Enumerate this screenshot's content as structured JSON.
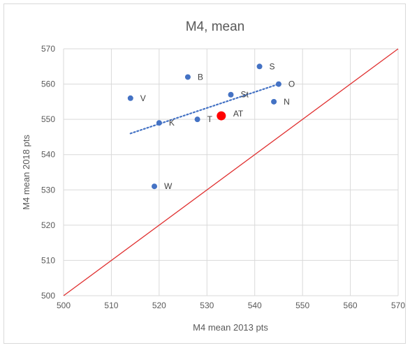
{
  "chart_data": {
    "type": "scatter",
    "title": "M4, mean",
    "xlabel": "M4 mean 2013 pts",
    "ylabel": "M4 mean 2018 pts",
    "xlim": [
      500,
      570
    ],
    "ylim": [
      500,
      570
    ],
    "xticks": [
      500,
      510,
      520,
      530,
      540,
      550,
      560,
      570
    ],
    "yticks": [
      500,
      510,
      520,
      530,
      540,
      550,
      560,
      570
    ],
    "grid": true,
    "points": [
      {
        "label": "V",
        "x": 514,
        "y": 556
      },
      {
        "label": "B",
        "x": 526,
        "y": 562
      },
      {
        "label": "S",
        "x": 541,
        "y": 565
      },
      {
        "label": "O",
        "x": 545,
        "y": 560
      },
      {
        "label": "St",
        "x": 535,
        "y": 557
      },
      {
        "label": "N",
        "x": 544,
        "y": 555
      },
      {
        "label": "K",
        "x": 520,
        "y": 549
      },
      {
        "label": "T",
        "x": 528,
        "y": 550
      },
      {
        "label": "W",
        "x": 519,
        "y": 531
      }
    ],
    "highlight": {
      "label": "AT",
      "x": 533,
      "y": 551,
      "color": "#ff0000"
    },
    "trendline": {
      "x": [
        514,
        545
      ],
      "y": [
        546,
        560
      ],
      "color": "#4472c4",
      "style": "dotted"
    },
    "reference_line": {
      "x": [
        500,
        570
      ],
      "y": [
        500,
        570
      ],
      "color": "#e03030"
    },
    "point_color": "#4472c4"
  }
}
